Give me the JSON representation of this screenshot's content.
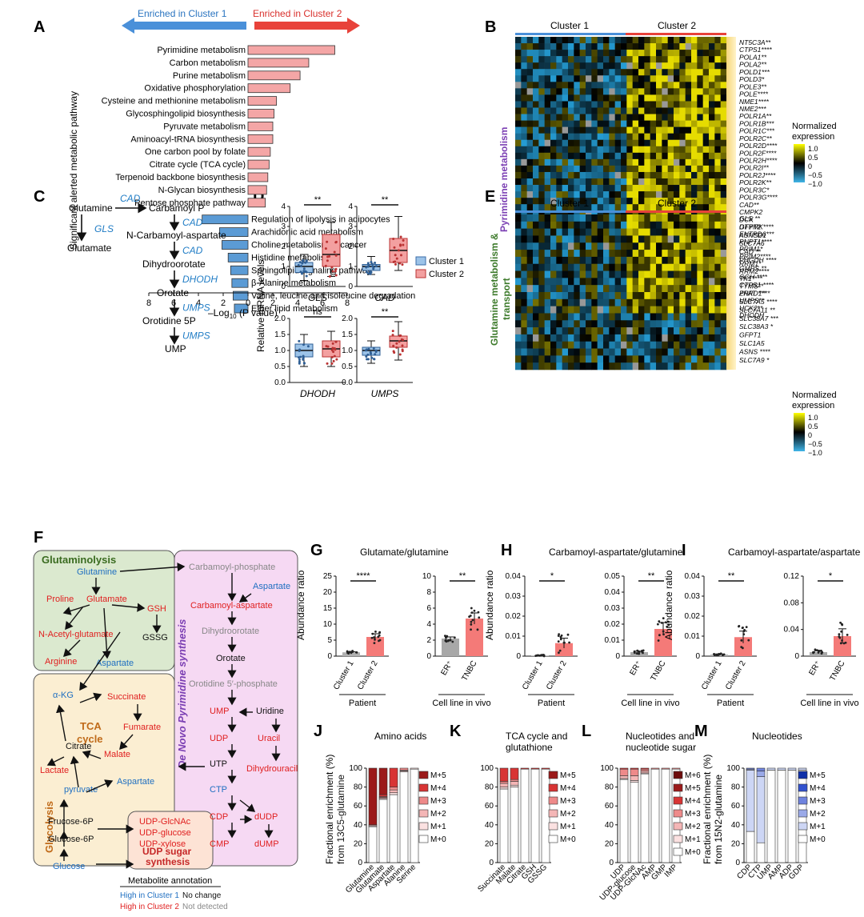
{
  "panel_labels": [
    "A",
    "B",
    "C",
    "D",
    "E",
    "F",
    "G",
    "H",
    "I",
    "J",
    "K",
    "L",
    "M"
  ],
  "panelA": {
    "enriched1": "Enriched in Cluster 1",
    "enriched2": "Enriched in Cluster 2",
    "ylabel": "Significant alerted metabolic pathway",
    "xlabel_pre": "–Log",
    "xlabel_sub": "10",
    "xlabel_post": " (P value)",
    "colors": {
      "cluster1": "#5b9bd5",
      "cluster2": "#f4a6a6"
    }
  },
  "panelB": {
    "c1": "Cluster 1",
    "c2": "Cluster 2",
    "side": "Pyrimidine metabolism",
    "genes": [
      "NT5C3A**",
      "CTPS1****",
      "POLA1**",
      "POLA2**",
      "POLD1***",
      "POLD3*",
      "POLE3**",
      "POLE****",
      "NME1****",
      "NME2***",
      "POLR1A**",
      "POLR1B***",
      "POLR1C***",
      "POLR2C**",
      "POLR2D****",
      "POLR2F****",
      "POLR2H****",
      "POLR2I**",
      "POLR2J****",
      "POLR2K**",
      "POLR3C*",
      "POLR3G****",
      "CAD**",
      "CMPK2",
      "DCK",
      "DTYMK****",
      "ENTPD6***",
      "PNPT1****",
      "PRIM1*",
      "PRIM2****",
      "RRM1*",
      "RRM2****",
      "TK1****",
      "TYMS**",
      "ZNRD1***",
      "UMPS**",
      "UCK2**",
      "DHODH"
    ],
    "legend_title1": "Normalized",
    "legend_title2": "expression",
    "legend_ticks": [
      "1.0",
      "0.5",
      "0",
      "−0.5",
      "−1.0"
    ]
  },
  "panelC": {
    "nodes": [
      "Glutamine",
      "Carbamoyl P",
      "Glutamate",
      "N-Carbamoyl-aspartate",
      "Dihydroorotate",
      "Orotate",
      "Orotidine 5P",
      "UMP"
    ],
    "enzymes": [
      "CAD",
      "GLS",
      "CAD",
      "CAD",
      "DHODH",
      "UMPS",
      "UMPS"
    ]
  },
  "panelD": {
    "ylabel": "Relative mRNA levels",
    "legend": [
      "Cluster 1",
      "Cluster 2"
    ],
    "genes": [
      "GLS",
      "CAD",
      "DHODH",
      "UMPS"
    ],
    "sig": [
      "**",
      "**",
      "ns",
      "**"
    ]
  },
  "panelE": {
    "c1": "Cluster 1",
    "c2": "Cluster 2",
    "side1": "Glutamine metabolism &",
    "side2": "transport",
    "genes": [
      "GLS **",
      "GFPT2",
      "ASNSD1",
      "SLC7A6",
      "CAD **",
      "PHGDH ****",
      "GMPS **",
      "GGH ****",
      "CTPS1 ****",
      "PPAT ***",
      "SLC7A5 ****",
      "SLC7A11 **",
      "SLC38A7 ***",
      "SLC38A3 *",
      "GFPT1",
      "SLC1A5",
      "ASNS ****",
      "SLC7A9 *"
    ],
    "legend_title1": "Normalized",
    "legend_title2": "expression",
    "legend_ticks": [
      "1.0",
      "0.5",
      "0",
      "−0.5",
      "−1.0"
    ]
  },
  "panelF": {
    "glutaminolysis": "Glutaminolysis",
    "tca": "TCA",
    "tca2": "cycle",
    "glycolysis": "Glycolysis",
    "denovo": "De Novo Pyrimidine synthesis",
    "udp1": "UDP sugar",
    "udp2": "synthesis",
    "annotation_title": "Metabolite annotation",
    "annotation": [
      "High in Cluster 1",
      "No change",
      "High in Cluster 2",
      "Not detected"
    ]
  },
  "panelG": {
    "title": "Glutamate/glutamine",
    "ylabel": "Abundance ratio",
    "sig": [
      "****",
      "**"
    ],
    "groups": [
      "Patient",
      "Cell line in vivo"
    ],
    "cats": [
      "Cluster 1",
      "Cluster 2",
      "ER⁺",
      "TNBC"
    ]
  },
  "panelH": {
    "title": "Carbamoyl-aspartate/glutamine",
    "ylabel": "Abundance ratio",
    "sig": [
      "*",
      "**"
    ],
    "groups": [
      "Patient",
      "Cell line in vivo"
    ],
    "cats": [
      "Cluster 1",
      "Cluster 2",
      "ER⁺",
      "TNBC"
    ]
  },
  "panelI": {
    "title": "Carbamoyl-aspartate/aspartate",
    "ylabel": "Abundance ratio",
    "sig": [
      "**",
      "*"
    ],
    "groups": [
      "Patient",
      "Cell line in vivo"
    ],
    "cats": [
      "Cluster 1",
      "Cluster 2",
      "ER⁺",
      "TNBC"
    ]
  },
  "panelJ": {
    "title": "Amino acids",
    "ylabel1": "Fractional enrichment (%)",
    "ylabel2": "from ",
    "tracer": "13C5-glutamine",
    "cats": [
      "Glutamine",
      "Glutamate",
      "Aspartate",
      "Alanine",
      "Serine"
    ]
  },
  "panelK": {
    "title": "TCA cycle and",
    "title2": "glutathione",
    "cats": [
      "Succinate",
      "Malate",
      "Citrate",
      "GSH",
      "GSSG"
    ]
  },
  "panelL": {
    "title": "Nucleotides and",
    "title2": "nucleotide sugar",
    "cats": [
      "UDP",
      "UDP-glucose",
      "UDP-GlcNAc",
      "AMP",
      "GMP",
      "IMP"
    ]
  },
  "panelM": {
    "title": "Nucleotides",
    "ylabel1": "Fractional enrichment (%)",
    "tracer": "15N2-glutamine",
    "cats": [
      "CDP",
      "CTP",
      "UMP",
      "AMP",
      "ADP",
      "GDP"
    ]
  },
  "chart_data": [
    {
      "type": "bar",
      "title": "",
      "xlabel": "–Log10 (P value)",
      "ylabel": "Significant alerted metabolic pathway",
      "orientation": "horizontal",
      "xlim": [
        -8,
        8
      ],
      "categories": [
        "Pyrimidine metabolism",
        "Carbon metabolism",
        "Purine metabolism",
        "Oxidative phosphorylation",
        "Cysteine and methionine metabolism",
        "Glycosphingolipid biosynthesis",
        "Pyruvate metabolism",
        "Aminoacyl-tRNA biosynthesis",
        "One carbon pool by folate",
        "Citrate cycle (TCA cycle)",
        "Terpenoid backbone biosynthesis",
        "N-Glycan biosynthesis",
        "Pentose phosphate pathway",
        "Regulation of lipolysis in adipocytes",
        "Arachidonic acid metabolism",
        "Choline metabolism in cancer",
        "Histidine metabolism",
        "Sphingolipid signaling pathway",
        "β-Alanine metabolism",
        "Valine, leucine and isoleucine degradation",
        "Ether lipid metabolism"
      ],
      "values": [
        7.0,
        4.9,
        4.2,
        3.4,
        2.3,
        2.1,
        2.0,
        2.0,
        1.8,
        1.7,
        1.6,
        1.5,
        1.4,
        -3.7,
        -2.3,
        -2.1,
        -1.6,
        -1.4,
        -1.3,
        -1.2,
        -1.1
      ]
    },
    {
      "type": "box",
      "title": "",
      "ylabel": "Relative mRNA levels",
      "series": [
        {
          "name": "Cluster 1"
        },
        {
          "name": "Cluster 2"
        }
      ],
      "panels": [
        {
          "gene": "GLS",
          "ylim": [
            0,
            4
          ],
          "yticks": [
            0,
            1,
            2,
            3,
            4
          ],
          "median": [
            1.0,
            1.6
          ],
          "q1": [
            0.7,
            1.0
          ],
          "q3": [
            1.2,
            2.6
          ],
          "min": [
            0.3,
            0.5
          ],
          "max": [
            1.6,
            3.2
          ]
        },
        {
          "gene": "CAD",
          "ylim": [
            0,
            4
          ],
          "yticks": [
            0,
            1,
            2,
            3,
            4
          ],
          "median": [
            1.0,
            1.8
          ],
          "q1": [
            0.8,
            1.2
          ],
          "q3": [
            1.1,
            2.4
          ],
          "min": [
            0.6,
            0.8
          ],
          "max": [
            1.5,
            3.5
          ]
        },
        {
          "gene": "DHODH",
          "ylim": [
            0,
            2.0
          ],
          "yticks": [
            0,
            0.5,
            1.0,
            1.5,
            2.0
          ],
          "median": [
            1.0,
            1.05
          ],
          "q1": [
            0.8,
            0.8
          ],
          "q3": [
            1.2,
            1.3
          ],
          "min": [
            0.5,
            0.5
          ],
          "max": [
            1.5,
            1.6
          ]
        },
        {
          "gene": "UMPS",
          "ylim": [
            0,
            2.0
          ],
          "yticks": [
            0,
            0.5,
            1.0,
            1.5,
            2.0
          ],
          "median": [
            1.0,
            1.3
          ],
          "q1": [
            0.85,
            1.1
          ],
          "q3": [
            1.1,
            1.45
          ],
          "min": [
            0.6,
            0.7
          ],
          "max": [
            1.3,
            1.9
          ]
        }
      ]
    },
    {
      "type": "bar",
      "title": "Glutamate/glutamine",
      "ylabel": "Abundance ratio",
      "categories": [
        "Cluster 1",
        "Cluster 2",
        "ER+",
        "TNBC"
      ],
      "values": [
        1.2,
        6.0,
        2.2,
        4.7
      ],
      "errors": [
        0.2,
        1.0,
        0.2,
        0.7
      ],
      "ylims": [
        [
          0,
          25
        ],
        [
          0,
          10
        ]
      ],
      "yticks": [
        [
          0,
          5,
          10,
          15,
          20,
          25
        ],
        [
          0,
          2,
          4,
          6,
          8,
          10
        ]
      ]
    },
    {
      "type": "bar",
      "title": "Carbamoyl-aspartate/glutamine",
      "ylabel": "Abundance ratio",
      "categories": [
        "Cluster 1",
        "Cluster 2",
        "ER+",
        "TNBC"
      ],
      "values": [
        0.0003,
        0.0065,
        0.0025,
        0.017
      ],
      "errors": [
        0.0002,
        0.0025,
        0.0006,
        0.004
      ],
      "ylims": [
        [
          0,
          0.04
        ],
        [
          0,
          0.05
        ]
      ],
      "yticks": [
        [
          0,
          0.01,
          0.02,
          0.03,
          0.04
        ],
        [
          0,
          0.01,
          0.02,
          0.03,
          0.04,
          0.05
        ]
      ]
    },
    {
      "type": "bar",
      "title": "Carbamoyl-aspartate/aspartate",
      "ylabel": "Abundance ratio",
      "categories": [
        "Cluster 1",
        "Cluster 2",
        "ER+",
        "TNBC"
      ],
      "values": [
        0.0008,
        0.0095,
        0.006,
        0.03
      ],
      "errors": [
        0.0003,
        0.003,
        0.002,
        0.011
      ],
      "ylims": [
        [
          0,
          0.04
        ],
        [
          0,
          0.12
        ]
      ],
      "yticks": [
        [
          0,
          0.01,
          0.02,
          0.03,
          0.04
        ],
        [
          0,
          0.04,
          0.08,
          0.12
        ]
      ]
    },
    {
      "type": "bar",
      "stacked": true,
      "title": "Amino acids",
      "ylabel": "Fractional enrichment (%) from 13C5-glutamine",
      "ylim": [
        0,
        100
      ],
      "categories": [
        "Glutamine",
        "Glutamate",
        "Aspartate",
        "Alanine",
        "Serine"
      ],
      "series": [
        {
          "name": "M+0",
          "values": [
            38,
            67,
            72,
            96,
            99
          ]
        },
        {
          "name": "M+1",
          "values": [
            1,
            1,
            2,
            1,
            1
          ]
        },
        {
          "name": "M+2",
          "values": [
            1,
            1,
            3,
            1,
            0
          ]
        },
        {
          "name": "M+3",
          "values": [
            0,
            1,
            3,
            2,
            0
          ]
        },
        {
          "name": "M+4",
          "values": [
            0,
            2,
            20,
            0,
            0
          ]
        },
        {
          "name": "M+5",
          "values": [
            60,
            28,
            0,
            0,
            0
          ]
        }
      ]
    },
    {
      "type": "bar",
      "stacked": true,
      "title": "TCA cycle and glutathione",
      "ylim": [
        0,
        100
      ],
      "categories": [
        "Succinate",
        "Malate",
        "Citrate",
        "GSH",
        "GSSG"
      ],
      "series": [
        {
          "name": "M+0",
          "values": [
            78,
            80,
            99,
            99,
            99
          ]
        },
        {
          "name": "M+1",
          "values": [
            2,
            2,
            0,
            0,
            0
          ]
        },
        {
          "name": "M+2",
          "values": [
            4,
            4,
            0,
            0,
            0
          ]
        },
        {
          "name": "M+3",
          "values": [
            2,
            2,
            0,
            0,
            0
          ]
        },
        {
          "name": "M+4",
          "values": [
            14,
            12,
            1,
            1,
            1
          ]
        },
        {
          "name": "M+5",
          "values": [
            0,
            0,
            0,
            0,
            0
          ]
        }
      ]
    },
    {
      "type": "bar",
      "stacked": true,
      "title": "Nucleotides and nucleotide sugar",
      "ylim": [
        0,
        100
      ],
      "categories": [
        "UDP",
        "UDP-glucose",
        "UDP-GlcNAc",
        "AMP",
        "GMP",
        "IMP"
      ],
      "series": [
        {
          "name": "M+0",
          "values": [
            88,
            85,
            94,
            99,
            99,
            99
          ]
        },
        {
          "name": "M+1",
          "values": [
            1,
            2,
            1,
            0,
            0,
            0
          ]
        },
        {
          "name": "M+2",
          "values": [
            3,
            5,
            2,
            0,
            0,
            0
          ]
        },
        {
          "name": "M+3",
          "values": [
            7,
            7,
            2,
            1,
            1,
            1
          ]
        },
        {
          "name": "M+4",
          "values": [
            1,
            1,
            1,
            0,
            0,
            0
          ]
        },
        {
          "name": "M+5",
          "values": [
            0,
            0,
            0,
            0,
            0,
            0
          ]
        },
        {
          "name": "M+6",
          "values": [
            0,
            0,
            0,
            0,
            0,
            0
          ]
        }
      ]
    },
    {
      "type": "bar",
      "stacked": true,
      "title": "Nucleotides",
      "ylabel": "Fractional enrichment (%) from 15N2-glutamine",
      "ylim": [
        0,
        100
      ],
      "categories": [
        "CDP",
        "CTP",
        "UMP",
        "AMP",
        "ADP",
        "GDP"
      ],
      "series": [
        {
          "name": "M+0",
          "values": [
            33,
            21,
            98,
            98,
            98,
            98
          ]
        },
        {
          "name": "M+1",
          "values": [
            65,
            70,
            2,
            2,
            2,
            2
          ]
        },
        {
          "name": "M+2",
          "values": [
            1,
            6,
            0,
            0,
            0,
            0
          ]
        },
        {
          "name": "M+3",
          "values": [
            1,
            3,
            0,
            0,
            0,
            0
          ]
        },
        {
          "name": "M+4",
          "values": [
            0,
            0,
            0,
            0,
            0,
            0
          ]
        },
        {
          "name": "M+5",
          "values": [
            0,
            0,
            0,
            0,
            0,
            0
          ]
        }
      ]
    }
  ]
}
